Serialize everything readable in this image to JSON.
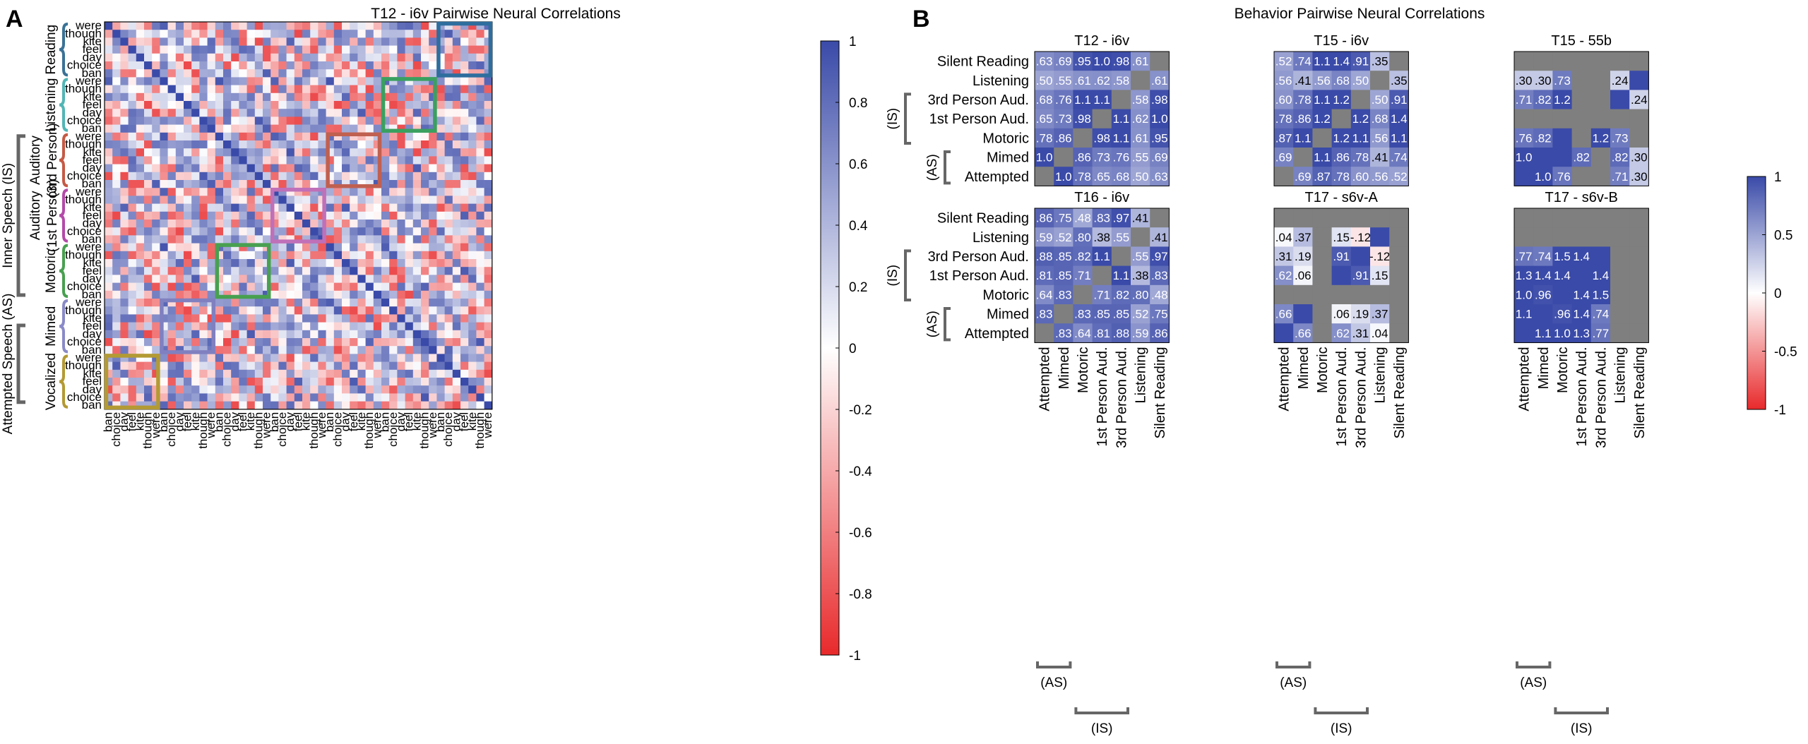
{
  "figure": {
    "panel_a_letter": "A",
    "panel_b_letter": "B"
  },
  "chart_data": [
    {
      "type": "heatmap",
      "panel": "A",
      "title": "T12 - i6v Pairwise Neural Correlations",
      "words": [
        "ban",
        "choice",
        "day",
        "feel",
        "kite",
        "though",
        "were"
      ],
      "blocks": [
        "Reading",
        "Listening",
        "Auditory (3rd Person)",
        "Auditory (1st Person)",
        "Motoric",
        "Mimed",
        "Vocalized"
      ],
      "block_labels": [
        {
          "block": "Reading",
          "lines": [
            "Reading"
          ],
          "color": "#3a7296"
        },
        {
          "block": "Listening",
          "lines": [
            "Listening"
          ],
          "color": "#52b5b5"
        },
        {
          "block": "Auditory (3rd Person)",
          "lines": [
            "Auditory",
            "(3rd Person)"
          ],
          "color": "#c55a45"
        },
        {
          "block": "Auditory (1st Person)",
          "lines": [
            "Auditory",
            "(1st Person)"
          ],
          "color": "#b34aa8"
        },
        {
          "block": "Motoric",
          "lines": [
            "Motoric"
          ],
          "color": "#48a050"
        },
        {
          "block": "Mimed",
          "lines": [
            "Mimed"
          ],
          "color": "#8a8ac8"
        },
        {
          "block": "Vocalized",
          "lines": [
            "Vocalized"
          ],
          "color": "#b39a33"
        }
      ],
      "group_labels": [
        {
          "label": "Inner Speech (IS)",
          "from_block": "Auditory (3rd Person)",
          "to_block": "Motoric"
        },
        {
          "label": "Attempted Speech (AS)",
          "from_block": "Mimed",
          "to_block": "Vocalized"
        }
      ],
      "diagonal_box_colors": [
        "#2e6e9e",
        "#3aa060",
        "#c06050",
        "#c070b8",
        "#48a050",
        "#8080c0",
        "#b39a33"
      ],
      "colorbar": {
        "min": -1,
        "max": 1,
        "ticks": [
          -1,
          -0.8,
          -0.6,
          -0.4,
          -0.2,
          0,
          0.2,
          0.4,
          0.6,
          0.8,
          1
        ],
        "tick_labels": [
          "-1",
          "-0.8",
          "-0.6",
          "-0.4",
          "-0.2",
          "0",
          "0.2",
          "0.4",
          "0.6",
          "0.8",
          "1"
        ]
      },
      "cell_values_note": "49 x 49 pairwise correlation matrix; off-diagonal cells appear as mixed values in roughly [-0.8, 0.9]; each 7x7 block has a strong positive diagonal (same word, different behavior)"
    },
    {
      "type": "heatmap",
      "panel": "B",
      "title": "Behavior Pairwise Neural Correlations",
      "rows": [
        "Silent Reading",
        "Listening",
        "3rd Person Aud.",
        "1st Person Aud.",
        "Motoric",
        "Mimed",
        "Attempted"
      ],
      "cols": [
        "Attempted",
        "Mimed",
        "Motoric",
        "1st Person Aud.",
        "3rd Person Aud.",
        "Listening",
        "Silent Reading"
      ],
      "row_group_labels": [
        {
          "label": "(IS)",
          "rows": [
            "3rd Person Aud.",
            "1st Person Aud.",
            "Motoric"
          ]
        },
        {
          "label": "(AS)",
          "rows": [
            "Mimed",
            "Attempted"
          ]
        }
      ],
      "col_group_labels": [
        {
          "label": "(AS)",
          "cols": [
            "Attempted",
            "Mimed"
          ]
        },
        {
          "label": "(IS)",
          "cols": [
            "Motoric",
            "1st Person Aud.",
            "3rd Person Aud."
          ]
        }
      ],
      "colorbar": {
        "min": -1,
        "max": 1,
        "ticks": [
          -1,
          -0.5,
          0,
          0.5,
          1
        ],
        "tick_labels": [
          "-1",
          "-0.5",
          "0",
          "0.5",
          "1"
        ]
      },
      "missing_color": "#7f7f7f",
      "subplots": [
        {
          "title": "T12 - i6v",
          "cells": [
            [
              ".63",
              ".69",
              ".95",
              "1.0",
              ".98",
              ".61",
              ""
            ],
            [
              ".50",
              ".55",
              ".61",
              ".62",
              ".58",
              "",
              ".61"
            ],
            [
              ".68",
              ".76",
              "1.1",
              "1.1",
              "",
              ".58",
              ".98"
            ],
            [
              ".65",
              ".73",
              ".98",
              "",
              "1.1",
              ".62",
              "1.0"
            ],
            [
              ".78",
              ".86",
              "",
              ".98",
              "1.1",
              ".61",
              ".95"
            ],
            [
              "1.0",
              "",
              ".86",
              ".73",
              ".76",
              ".55",
              ".69"
            ],
            [
              "",
              "1.0",
              ".78",
              ".65",
              ".68",
              ".50",
              ".63"
            ]
          ],
          "values": [
            [
              0.63,
              0.69,
              0.95,
              1.0,
              0.98,
              0.61,
              null
            ],
            [
              0.5,
              0.55,
              0.61,
              0.62,
              0.58,
              null,
              0.61
            ],
            [
              0.68,
              0.76,
              1.1,
              1.1,
              null,
              0.58,
              0.98
            ],
            [
              0.65,
              0.73,
              0.98,
              null,
              1.1,
              0.62,
              1.0
            ],
            [
              0.78,
              0.86,
              null,
              0.98,
              1.1,
              0.61,
              0.95
            ],
            [
              1.0,
              null,
              0.86,
              0.73,
              0.76,
              0.55,
              0.69
            ],
            [
              null,
              1.0,
              0.78,
              0.65,
              0.68,
              0.5,
              0.63
            ]
          ]
        },
        {
          "title": "T15 - i6v",
          "cells": [
            [
              ".52",
              ".74",
              "1.1",
              "1.4",
              ".91",
              ".35",
              ""
            ],
            [
              ".56",
              ".41",
              ".56",
              ".68",
              ".50",
              "",
              ".35"
            ],
            [
              ".60",
              ".78",
              "1.1",
              "1.2",
              "",
              ".50",
              ".91"
            ],
            [
              ".78",
              ".86",
              "1.2",
              "",
              "1.2",
              ".68",
              "1.4"
            ],
            [
              ".87",
              "1.1",
              "",
              "1.2",
              "1.1",
              ".56",
              "1.1"
            ],
            [
              ".69",
              "",
              "1.1",
              ".86",
              ".78",
              ".41",
              ".74"
            ],
            [
              "",
              ".69",
              ".87",
              ".78",
              ".60",
              ".56",
              ".52"
            ]
          ],
          "values": [
            [
              0.52,
              0.74,
              1.1,
              1.4,
              0.91,
              0.35,
              null
            ],
            [
              0.56,
              0.41,
              0.56,
              0.68,
              0.5,
              null,
              0.35
            ],
            [
              0.6,
              0.78,
              1.1,
              1.2,
              null,
              0.5,
              0.91
            ],
            [
              0.78,
              0.86,
              1.2,
              null,
              1.2,
              0.68,
              1.4
            ],
            [
              0.87,
              1.1,
              null,
              1.2,
              1.1,
              0.56,
              1.1
            ],
            [
              0.69,
              null,
              1.1,
              0.86,
              0.78,
              0.41,
              0.74
            ],
            [
              null,
              0.69,
              0.87,
              0.78,
              0.6,
              0.56,
              0.52
            ]
          ]
        },
        {
          "title": "T15 - 55b",
          "cells": [
            [
              "",
              "",
              "",
              "",
              "",
              "",
              ""
            ],
            [
              ".30",
              ".30",
              ".73",
              "",
              "",
              ".24",
              ""
            ],
            [
              ".71",
              ".82",
              "1.2",
              "",
              "",
              "",
              ".24"
            ],
            [
              "",
              "",
              "",
              "",
              "",
              "",
              ""
            ],
            [
              ".76",
              ".82",
              "",
              "",
              "1.2",
              ".73",
              ""
            ],
            [
              "1.0",
              "",
              "",
              ".82",
              "",
              ".82",
              ".30"
            ],
            [
              "",
              "1.0",
              ".76",
              "",
              "",
              ".71",
              ".30"
            ]
          ],
          "values": [
            [
              null,
              null,
              null,
              null,
              null,
              null,
              null
            ],
            [
              0.3,
              0.3,
              0.73,
              null,
              null,
              0.24,
              1
            ],
            [
              0.71,
              0.82,
              1.2,
              null,
              null,
              1,
              0.24
            ],
            [
              null,
              null,
              null,
              null,
              null,
              null,
              null
            ],
            [
              0.76,
              0.82,
              1,
              null,
              1.2,
              0.73,
              null
            ],
            [
              1.0,
              1,
              1,
              0.82,
              null,
              0.82,
              0.3
            ],
            [
              1,
              1.0,
              0.76,
              null,
              null,
              0.71,
              0.3
            ]
          ]
        },
        {
          "title": "T16 - i6v",
          "cells": [
            [
              ".86",
              ".75",
              ".48",
              ".83",
              ".97",
              ".41",
              ""
            ],
            [
              ".59",
              ".52",
              ".80",
              ".38",
              ".55",
              "",
              ".41"
            ],
            [
              ".88",
              ".85",
              ".82",
              "1.1",
              "",
              ".55",
              ".97"
            ],
            [
              ".81",
              ".85",
              ".71",
              "",
              "1.1",
              ".38",
              ".83"
            ],
            [
              ".64",
              ".83",
              "",
              ".71",
              ".82",
              ".80",
              ".48"
            ],
            [
              ".83",
              "",
              ".83",
              ".85",
              ".85",
              ".52",
              ".75"
            ],
            [
              "",
              ".83",
              ".64",
              ".81",
              ".88",
              ".59",
              ".86"
            ]
          ],
          "values": [
            [
              0.86,
              0.75,
              0.48,
              0.83,
              0.97,
              0.41,
              null
            ],
            [
              0.59,
              0.52,
              0.8,
              0.38,
              0.55,
              null,
              0.41
            ],
            [
              0.88,
              0.85,
              0.82,
              1.1,
              null,
              0.55,
              0.97
            ],
            [
              0.81,
              0.85,
              0.71,
              null,
              1.1,
              0.38,
              0.83
            ],
            [
              0.64,
              0.83,
              null,
              0.71,
              0.82,
              0.8,
              0.48
            ],
            [
              0.83,
              null,
              0.83,
              0.85,
              0.85,
              0.52,
              0.75
            ],
            [
              null,
              0.83,
              0.64,
              0.81,
              0.88,
              0.59,
              0.86
            ]
          ]
        },
        {
          "title": "T17 - s6v-A",
          "cells": [
            [
              "",
              "",
              "",
              "",
              "",
              "",
              ""
            ],
            [
              ".04",
              ".37",
              "",
              ".15",
              "-.12",
              "",
              ""
            ],
            [
              ".31",
              ".19",
              "",
              ".91",
              "",
              "-.12",
              ""
            ],
            [
              ".62",
              ".06",
              "",
              "",
              ".91",
              ".15",
              ""
            ],
            [
              "",
              "",
              "",
              "",
              "",
              "",
              ""
            ],
            [
              ".66",
              "",
              "",
              ".06",
              ".19",
              ".37",
              ""
            ],
            [
              "",
              ".66",
              "",
              ".62",
              ".31",
              ".04",
              ""
            ]
          ],
          "values": [
            [
              null,
              null,
              null,
              null,
              null,
              null,
              null
            ],
            [
              0.04,
              0.37,
              null,
              0.15,
              -0.12,
              1,
              null
            ],
            [
              0.31,
              0.19,
              null,
              0.91,
              1,
              -0.12,
              null
            ],
            [
              0.62,
              0.06,
              null,
              1,
              0.91,
              0.15,
              null
            ],
            [
              null,
              null,
              null,
              null,
              null,
              null,
              null
            ],
            [
              0.66,
              1,
              null,
              0.06,
              0.19,
              0.37,
              null
            ],
            [
              1,
              0.66,
              null,
              0.62,
              0.31,
              0.04,
              null
            ]
          ]
        },
        {
          "title": "T17 - s6v-B",
          "cells": [
            [
              "",
              "",
              "",
              "",
              "",
              "",
              ""
            ],
            [
              "",
              "",
              "",
              "",
              "",
              "",
              ""
            ],
            [
              ".77",
              ".74",
              "1.5",
              "1.4",
              "",
              "",
              ""
            ],
            [
              "1.3",
              "1.4",
              "1.4",
              "",
              "1.4",
              "",
              ""
            ],
            [
              "1.0",
              ".96",
              "",
              "1.4",
              "1.5",
              "",
              ""
            ],
            [
              "1.1",
              "",
              ".96",
              "1.4",
              ".74",
              "",
              ""
            ],
            [
              "",
              "1.1",
              "1.0",
              "1.3",
              ".77",
              "",
              ""
            ]
          ],
          "values": [
            [
              null,
              null,
              null,
              null,
              null,
              null,
              null
            ],
            [
              null,
              null,
              null,
              null,
              null,
              null,
              null
            ],
            [
              0.77,
              0.74,
              1.5,
              1.4,
              1,
              null,
              null
            ],
            [
              1.3,
              1.4,
              1.4,
              1,
              1.4,
              null,
              null
            ],
            [
              1.0,
              0.96,
              1,
              1.4,
              1.5,
              null,
              null
            ],
            [
              1.1,
              1,
              0.96,
              1.4,
              0.74,
              null,
              null
            ],
            [
              1,
              1.1,
              1.0,
              1.3,
              0.77,
              null,
              null
            ]
          ]
        }
      ]
    }
  ]
}
